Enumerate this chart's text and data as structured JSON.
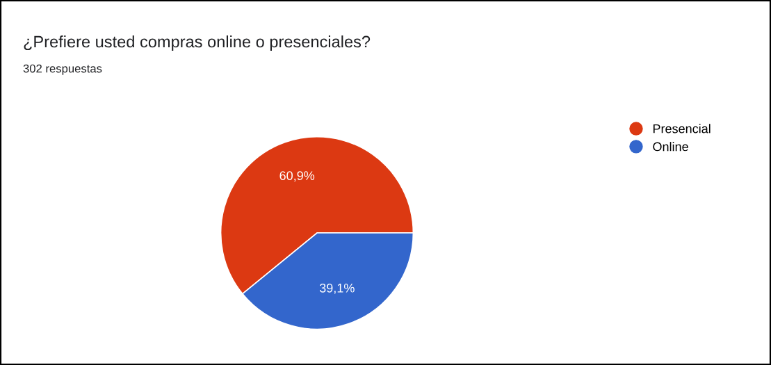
{
  "chart_data": {
    "type": "pie",
    "title": "¿Prefiere usted compras online o presenciales?",
    "subtitle": "302 respuestas",
    "categories": [
      "Presencial",
      "Online"
    ],
    "values": [
      60.9,
      39.1
    ],
    "colors": [
      "#dc3912",
      "#3366cc"
    ],
    "value_labels": [
      "60,9%",
      "39,1%"
    ],
    "legend": "top right"
  }
}
